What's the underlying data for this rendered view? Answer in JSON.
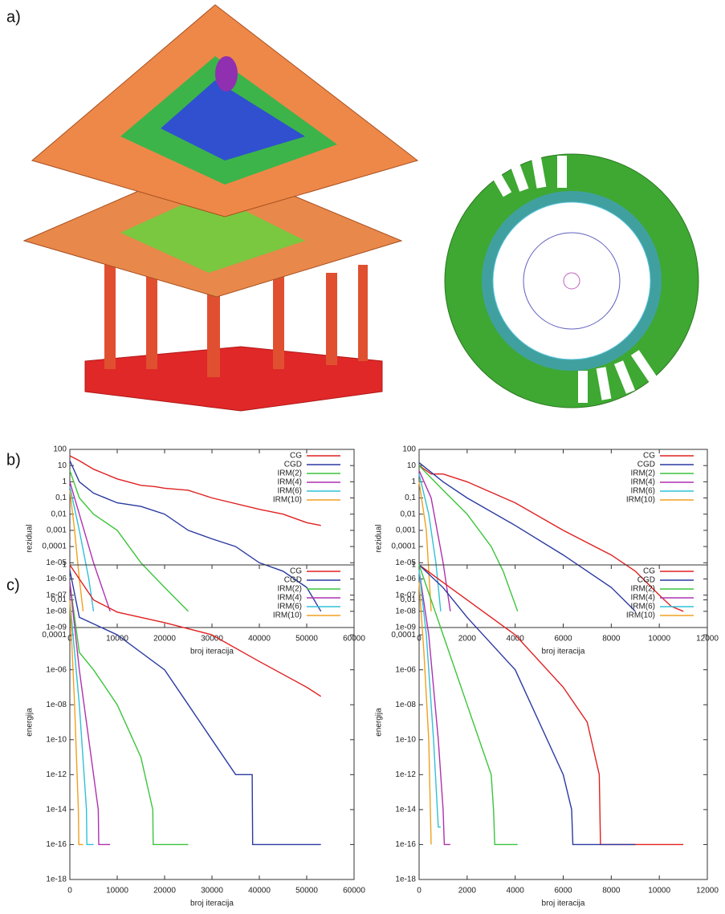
{
  "panel_labels": [
    "a)",
    "b)",
    "c)"
  ],
  "chart_data": [
    {
      "type": "line",
      "log_y": true,
      "grid": false,
      "legend": "upper right",
      "ylabel": "rezidual",
      "xlabel": "broj iteracija",
      "xlim": [
        0,
        60000
      ],
      "xticks": [
        0,
        10000,
        20000,
        30000,
        40000,
        50000,
        60000
      ],
      "ylim": [
        1e-09,
        100
      ],
      "yticks": [
        100,
        10,
        1,
        {
          "value": 0.1,
          "label": "0,1"
        },
        {
          "value": 0.01,
          "label": "0,01"
        },
        {
          "value": 0.001,
          "label": "0,001"
        },
        {
          "value": 0.0001,
          "label": "0,0001"
        },
        {
          "value": 1e-05,
          "label": "1e-05"
        },
        {
          "value": 1e-06,
          "label": "1e-06"
        },
        {
          "value": 1e-07,
          "label": "1e-07"
        },
        {
          "value": 1e-08,
          "label": "1e-08"
        },
        {
          "value": 1e-09,
          "label": "1e-09"
        }
      ],
      "series": [
        {
          "name": "CG",
          "color": "#e02020",
          "x": [
            0,
            2000,
            5000,
            10000,
            15000,
            18000,
            20000,
            25000,
            30000,
            40000,
            45000,
            50000,
            53000
          ],
          "values": [
            40,
            20,
            6,
            1.5,
            0.6,
            0.5,
            0.4,
            0.3,
            0.1,
            0.02,
            0.01,
            0.003,
            0.002
          ]
        },
        {
          "name": "CGD",
          "color": "#2a3aa0",
          "x": [
            0,
            2000,
            5000,
            10000,
            15000,
            20000,
            25000,
            30000,
            35000,
            40000,
            45000,
            50000,
            53000
          ],
          "values": [
            20,
            1,
            0.2,
            0.05,
            0.03,
            0.01,
            0.001,
            0.0003,
            0.0001,
            1e-05,
            3e-06,
            3e-07,
            1e-08
          ]
        },
        {
          "name": "IRM(2)",
          "color": "#3cc43c",
          "x": [
            0,
            2000,
            5000,
            10000,
            15000,
            20000,
            25000
          ],
          "values": [
            5,
            0.1,
            0.01,
            0.001,
            1e-05,
            3e-07,
            1e-08
          ]
        },
        {
          "name": "IRM(4)",
          "color": "#b030b0",
          "x": [
            0,
            2000,
            5000,
            8500
          ],
          "values": [
            1,
            0.01,
            1e-05,
            1e-08
          ]
        },
        {
          "name": "IRM(6)",
          "color": "#30c0d8",
          "x": [
            0,
            2000,
            4000,
            5000
          ],
          "values": [
            0.5,
            0.001,
            1e-06,
            1e-08
          ]
        },
        {
          "name": "IRM(10)",
          "color": "#f0a020",
          "x": [
            0,
            1000,
            2000,
            2800
          ],
          "values": [
            0.3,
            0.001,
            1e-06,
            1e-08
          ]
        }
      ]
    },
    {
      "type": "line",
      "log_y": true,
      "grid": false,
      "legend": "upper right",
      "ylabel": "rezidual",
      "xlabel": "broj iteracija",
      "xlim": [
        0,
        12000
      ],
      "xticks": [
        0,
        2000,
        4000,
        6000,
        8000,
        10000,
        12000
      ],
      "ylim": [
        1e-09,
        100
      ],
      "yticks": [
        100,
        10,
        1,
        {
          "value": 0.1,
          "label": "0,1"
        },
        {
          "value": 0.01,
          "label": "0,01"
        },
        {
          "value": 0.001,
          "label": "0,001"
        },
        {
          "value": 0.0001,
          "label": "0,0001"
        },
        {
          "value": 1e-05,
          "label": "1e-05"
        },
        {
          "value": 1e-06,
          "label": "1e-06"
        },
        {
          "value": 1e-07,
          "label": "1e-07"
        },
        {
          "value": 1e-08,
          "label": "1e-08"
        },
        {
          "value": 1e-09,
          "label": "1e-09"
        }
      ],
      "series": [
        {
          "name": "CG",
          "color": "#e02020",
          "x": [
            0,
            500,
            1000,
            2000,
            4000,
            6000,
            8000,
            9000,
            10000,
            10500,
            11000
          ],
          "values": [
            10,
            3,
            3,
            1,
            0.05,
            0.001,
            3e-05,
            3e-06,
            1e-07,
            2e-08,
            1e-08
          ]
        },
        {
          "name": "CGD",
          "color": "#2a3aa0",
          "x": [
            0,
            1000,
            2000,
            4000,
            6000,
            8000,
            9000
          ],
          "values": [
            15,
            1,
            0.1,
            0.002,
            3e-05,
            3e-07,
            1e-08
          ]
        },
        {
          "name": "IRM(2)",
          "color": "#3cc43c",
          "x": [
            0,
            1000,
            2000,
            3000,
            3500,
            4100
          ],
          "values": [
            10,
            0.3,
            0.01,
            0.0001,
            3e-06,
            1e-08
          ]
        },
        {
          "name": "IRM(4)",
          "color": "#b030b0",
          "x": [
            0,
            500,
            1000,
            1300
          ],
          "values": [
            5,
            0.1,
            1e-05,
            1e-08
          ]
        },
        {
          "name": "IRM(6)",
          "color": "#30c0d8",
          "x": [
            0,
            400,
            700,
            900
          ],
          "values": [
            3,
            0.01,
            1e-05,
            1e-08
          ]
        },
        {
          "name": "IRM(10)",
          "color": "#f0a020",
          "x": [
            0,
            300,
            500
          ],
          "values": [
            1,
            0.001,
            1e-08
          ]
        }
      ]
    },
    {
      "type": "line",
      "log_y": true,
      "grid": false,
      "legend": "upper right",
      "ylabel": "energija",
      "xlabel": "broj iteracija",
      "xlim": [
        0,
        60000
      ],
      "xticks": [
        0,
        10000,
        20000,
        30000,
        40000,
        50000,
        60000
      ],
      "ylim": [
        1e-18,
        1
      ],
      "yticks": [
        1,
        {
          "value": 0.01,
          "label": "0,01"
        },
        {
          "value": 0.0001,
          "label": "0,0001"
        },
        {
          "value": 1e-06,
          "label": "1e-06"
        },
        {
          "value": 1e-08,
          "label": "1e-08"
        },
        1e-10,
        1e-12,
        1e-14,
        1e-16,
        1e-18
      ],
      "series": [
        {
          "name": "CG",
          "color": "#e02020",
          "x": [
            0,
            5000,
            10000,
            20000,
            30000,
            40000,
            50000,
            53000
          ],
          "values": [
            1,
            0.01,
            0.002,
            0.0005,
            0.0001,
            3e-06,
            1e-07,
            3e-08
          ]
        },
        {
          "name": "CGD",
          "color": "#2a3aa0",
          "x": [
            0,
            2000,
            10000,
            20000,
            25000,
            30000,
            35000,
            38500,
            38600,
            53000
          ],
          "values": [
            0.5,
            0.001,
            0.0001,
            1e-06,
            1e-08,
            1e-10,
            1e-12,
            1e-12,
            1e-16,
            1e-16
          ]
        },
        {
          "name": "IRM(2)",
          "color": "#3cc43c",
          "x": [
            0,
            2000,
            5000,
            10000,
            15000,
            17500,
            17600,
            25000
          ],
          "values": [
            0.1,
            1e-05,
            1e-06,
            1e-08,
            1e-11,
            1e-14,
            1e-16,
            1e-16
          ]
        },
        {
          "name": "IRM(4)",
          "color": "#b030b0",
          "x": [
            0,
            2000,
            4000,
            6000,
            6100,
            8500
          ],
          "values": [
            0.1,
            1e-06,
            1e-10,
            1e-14,
            1e-16,
            1e-16
          ]
        },
        {
          "name": "IRM(6)",
          "color": "#30c0d8",
          "x": [
            0,
            2000,
            3500,
            3600,
            5000
          ],
          "values": [
            0.01,
            1e-08,
            1e-14,
            1e-16,
            1e-16
          ]
        },
        {
          "name": "IRM(10)",
          "color": "#f0a020",
          "x": [
            0,
            1000,
            1800,
            1900,
            2800
          ],
          "values": [
            0.01,
            1e-08,
            1e-14,
            1e-16,
            1e-16
          ]
        }
      ]
    },
    {
      "type": "line",
      "log_y": true,
      "grid": false,
      "legend": "upper right",
      "ylabel": "energija",
      "xlabel": "broj iteracija",
      "xlim": [
        0,
        12000
      ],
      "xticks": [
        0,
        2000,
        4000,
        6000,
        8000,
        10000,
        12000
      ],
      "ylim": [
        1e-18,
        1
      ],
      "yticks": [
        1,
        {
          "value": 0.01,
          "label": "0,01"
        },
        {
          "value": 0.0001,
          "label": "0,0001"
        },
        {
          "value": 1e-06,
          "label": "1e-06"
        },
        {
          "value": 1e-08,
          "label": "1e-08"
        },
        1e-10,
        1e-12,
        1e-14,
        1e-16,
        1e-18
      ],
      "series": [
        {
          "name": "CG",
          "color": "#e02020",
          "x": [
            0,
            1000,
            2000,
            4000,
            6000,
            7000,
            7500,
            7550,
            11000
          ],
          "values": [
            1,
            0.1,
            0.01,
            0.0001,
            1e-07,
            1e-09,
            1e-12,
            1e-16,
            1e-16
          ]
        },
        {
          "name": "CGD",
          "color": "#2a3aa0",
          "x": [
            0,
            1000,
            2000,
            4000,
            5000,
            6000,
            6350,
            6400,
            9000
          ],
          "values": [
            1,
            0.05,
            0.001,
            1e-06,
            1e-09,
            1e-12,
            1e-14,
            1e-16,
            1e-16
          ]
        },
        {
          "name": "IRM(2)",
          "color": "#3cc43c",
          "x": [
            0,
            500,
            1000,
            2000,
            3000,
            3100,
            3150,
            4100
          ],
          "values": [
            1,
            0.01,
            0.0001,
            1e-08,
            1e-12,
            1e-14,
            1e-16,
            1e-16
          ]
        },
        {
          "name": "IRM(4)",
          "color": "#b030b0",
          "x": [
            0,
            400,
            800,
            1000,
            1050,
            1300
          ],
          "values": [
            0.5,
            0.0001,
            1e-10,
            1e-14,
            1e-16,
            1e-16
          ]
        },
        {
          "name": "IRM(6)",
          "color": "#30c0d8",
          "x": [
            0,
            300,
            600,
            800,
            900
          ],
          "values": [
            0.5,
            0.0001,
            1e-10,
            1e-15,
            1e-15
          ]
        },
        {
          "name": "IRM(10)",
          "color": "#f0a020",
          "x": [
            0,
            200,
            400,
            500
          ],
          "values": [
            0.1,
            1e-05,
            1e-10,
            1e-16
          ]
        }
      ]
    }
  ]
}
